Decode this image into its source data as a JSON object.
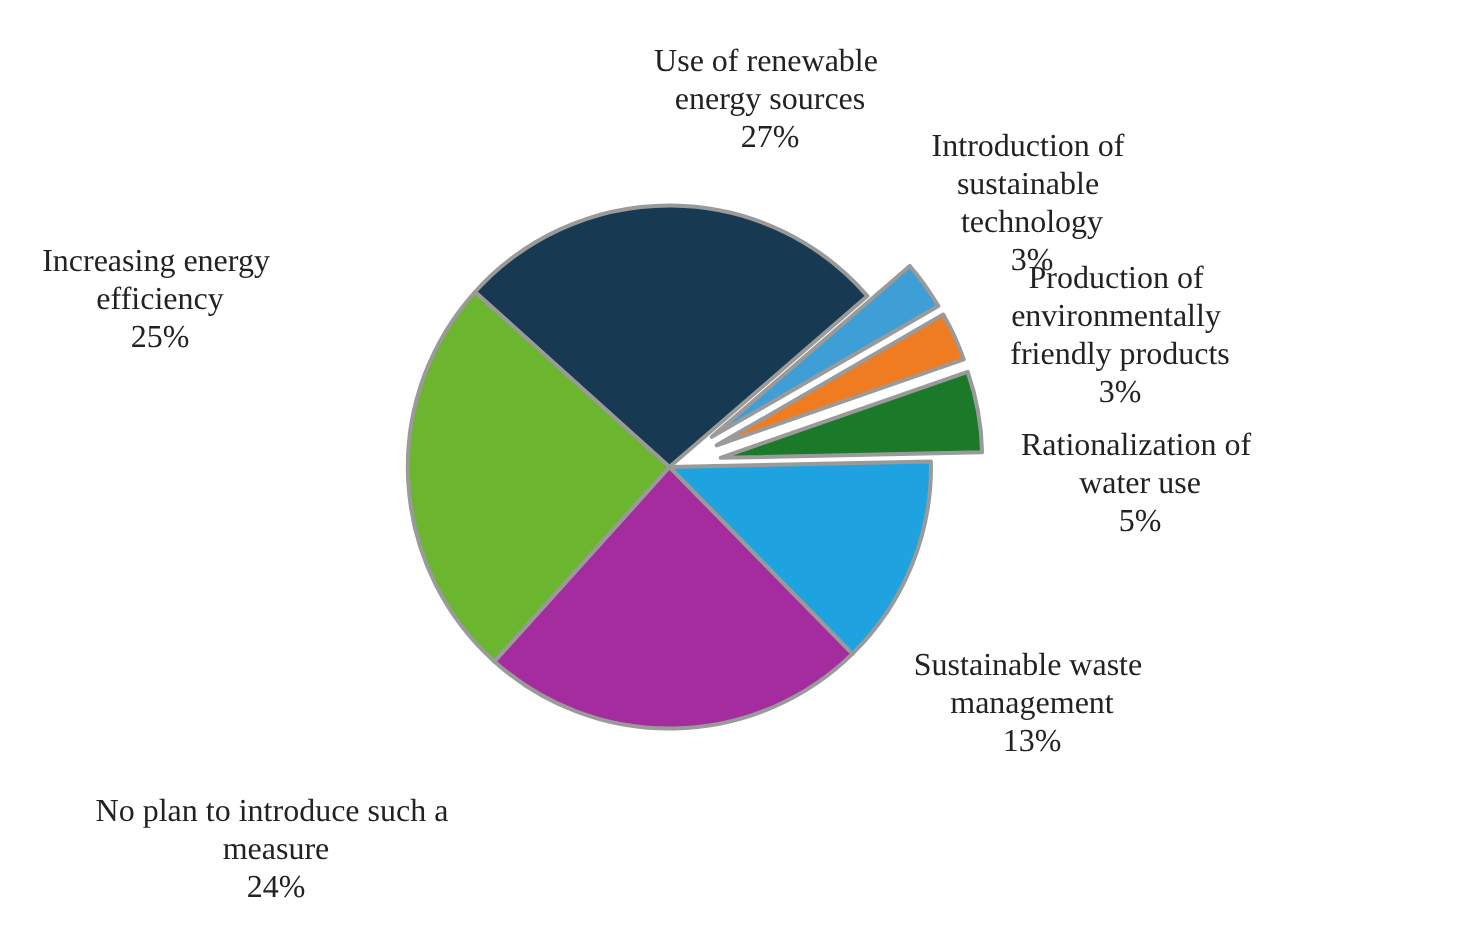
{
  "chart_data": {
    "type": "pie",
    "categories": [
      "Use of renewable energy sources",
      "Introduction of sustainable technology",
      "Production of environmentally friendly products",
      "Rationalization of water use",
      "Sustainable waste management",
      "No plan to introduce such a measure",
      "Increasing energy efficiency"
    ],
    "values": [
      27,
      3,
      3,
      5,
      13,
      24,
      25
    ],
    "value_labels": [
      "27%",
      "3%",
      "3%",
      "5%",
      "13%",
      "24%",
      "25%"
    ],
    "colors": [
      "#173a52",
      "#3d9fd6",
      "#f07c22",
      "#1b7a2a",
      "#1ea3e0",
      "#a52c9e",
      "#6cb52f"
    ],
    "legend": false
  }
}
